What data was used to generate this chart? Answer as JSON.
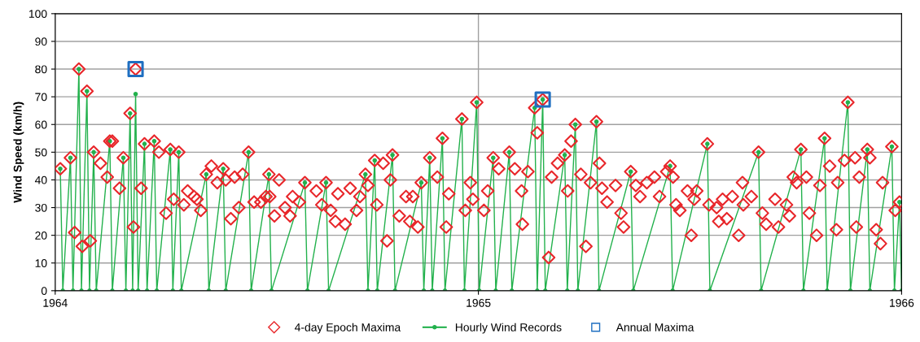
{
  "chart_data": {
    "type": "scatter",
    "ylabel": "Wind Speed (km/h)",
    "xlim": [
      1964,
      1966
    ],
    "xticks": [
      1964,
      1965,
      1966
    ],
    "ylim": [
      0,
      100
    ],
    "yticks": [
      0,
      10,
      20,
      30,
      40,
      50,
      60,
      70,
      80,
      90,
      100
    ],
    "grid": true,
    "legend": "bottom",
    "series": [
      {
        "name": "4-day Epoch Maxima",
        "marker": "diamond",
        "color": "#e8262a",
        "x": [
          1964.012,
          1964.036,
          1964.056,
          1964.075,
          1964.046,
          1964.064,
          1964.083,
          1964.091,
          1964.107,
          1964.123,
          1964.129,
          1964.135,
          1964.152,
          1964.161,
          1964.177,
          1964.185,
          1964.19,
          1964.203,
          1964.211,
          1964.234,
          1964.245,
          1964.262,
          1964.272,
          1964.28,
          1964.292,
          1964.304,
          1964.313,
          1964.328,
          1964.335,
          1964.344,
          1964.357,
          1964.369,
          1964.383,
          1964.397,
          1964.403,
          1964.415,
          1964.424,
          1964.434,
          1964.443,
          1964.457,
          1964.47,
          1964.486,
          1964.498,
          1964.505,
          1964.507,
          1964.518,
          1964.529,
          1964.543,
          1964.555,
          1964.561,
          1964.577,
          1964.59,
          1964.617,
          1964.63,
          1964.64,
          1964.651,
          1964.662,
          1964.668,
          1964.685,
          1964.697,
          1964.712,
          1964.72,
          1964.733,
          1964.739,
          1964.755,
          1964.76,
          1964.775,
          1964.784,
          1964.792,
          1964.797,
          1964.813,
          1964.829,
          1964.838,
          1964.845,
          1964.857,
          1964.865,
          1964.885,
          1964.903,
          1964.915,
          1964.924,
          1964.93,
          1964.961,
          1964.969,
          1964.981,
          1964.987,
          1964.996,
          1965.013,
          1965.022,
          1965.035,
          1965.048,
          1965.073,
          1965.086,
          1965.102,
          1965.104,
          1965.117,
          1965.133,
          1965.139,
          1965.152,
          1965.166,
          1965.173,
          1965.187,
          1965.204,
          1965.211,
          1965.219,
          1965.229,
          1965.242,
          1965.254,
          1965.265,
          1965.279,
          1965.286,
          1965.292,
          1965.304,
          1965.324,
          1965.337,
          1965.343,
          1965.36,
          1965.372,
          1965.382,
          1965.398,
          1965.416,
          1965.428,
          1965.445,
          1965.453,
          1965.46,
          1965.467,
          1965.476,
          1965.494,
          1965.503,
          1965.51,
          1965.516,
          1965.541,
          1965.545,
          1965.563,
          1965.568,
          1965.577,
          1965.587,
          1965.6,
          1965.615,
          1965.624,
          1965.626,
          1965.645,
          1965.662,
          1965.671,
          1965.68,
          1965.701,
          1965.709,
          1965.728,
          1965.735,
          1965.744,
          1965.752,
          1965.762,
          1965.775,
          1965.782,
          1965.799,
          1965.807,
          1965.818,
          1965.83,
          1965.846,
          1965.849,
          1965.865,
          1965.873,
          1965.89,
          1965.893,
          1965.9,
          1965.919,
          1965.925,
          1965.94,
          1965.95,
          1965.955,
          1965.977,
          1965.985,
          1965.995
        ],
        "values": [
          44,
          48,
          80,
          72,
          21,
          16,
          18,
          50,
          46,
          41,
          54,
          54,
          37,
          48,
          64,
          23,
          80,
          37,
          53,
          54,
          50,
          28,
          51,
          33,
          50,
          31,
          36,
          34,
          33,
          29,
          42,
          45,
          39,
          44,
          40,
          26,
          41,
          30,
          42,
          50,
          32,
          32,
          34,
          42,
          34,
          27,
          40,
          30,
          27,
          34,
          32,
          39,
          36,
          31,
          39,
          29,
          25,
          35,
          24,
          37,
          29,
          34,
          42,
          38,
          47,
          31,
          46,
          18,
          40,
          49,
          27,
          34,
          25,
          34,
          23,
          39,
          48,
          41,
          55,
          23,
          35,
          62,
          29,
          39,
          33,
          68,
          29,
          36,
          48,
          44,
          50,
          44,
          36,
          24,
          43,
          66,
          57,
          69,
          12,
          41,
          46,
          49,
          36,
          54,
          60,
          42,
          16,
          39,
          61,
          46,
          37,
          32,
          38,
          28,
          23,
          43,
          38,
          34,
          39,
          41,
          34,
          43,
          45,
          41,
          31,
          29,
          36,
          20,
          33,
          36,
          53,
          31,
          30,
          25,
          33,
          26,
          34,
          20,
          39,
          31,
          34,
          50,
          28,
          24,
          33,
          23,
          31,
          27,
          41,
          39,
          51,
          41,
          28,
          20,
          38,
          55,
          45,
          22,
          39,
          47,
          68,
          48,
          23,
          41,
          51,
          48,
          22,
          17,
          39,
          52,
          29,
          32
        ]
      },
      {
        "name": "Hourly Wind Records",
        "type": "line",
        "marker": "circle",
        "color": "#22b14c",
        "x": [
          1964.012,
          1964.018,
          1964.036,
          1964.042,
          1964.056,
          1964.062,
          1964.075,
          1964.081,
          1964.091,
          1964.097,
          1964.129,
          1964.135,
          1964.161,
          1964.167,
          1964.177,
          1964.183,
          1964.19,
          1964.196,
          1964.211,
          1964.217,
          1964.234,
          1964.24,
          1964.272,
          1964.278,
          1964.292,
          1964.298,
          1964.357,
          1964.363,
          1964.397,
          1964.403,
          1964.457,
          1964.463,
          1964.505,
          1964.511,
          1964.59,
          1964.596,
          1964.64,
          1964.646,
          1964.733,
          1964.739,
          1964.755,
          1964.761,
          1964.797,
          1964.803,
          1964.865,
          1964.871,
          1964.885,
          1964.891,
          1964.915,
          1964.921,
          1964.961,
          1964.967,
          1964.996,
          1965.002,
          1965.035,
          1965.041,
          1965.073,
          1965.079,
          1965.133,
          1965.139,
          1965.152,
          1965.158,
          1965.204,
          1965.21,
          1965.229,
          1965.235,
          1965.279,
          1965.285,
          1965.36,
          1965.366,
          1965.453,
          1965.459,
          1965.541,
          1965.547,
          1965.662,
          1965.668,
          1965.762,
          1965.768,
          1965.818,
          1965.824,
          1965.873,
          1965.879,
          1965.919,
          1965.925,
          1965.977,
          1965.983,
          1965.995,
          1966.0
        ],
        "values": [
          44,
          0,
          48,
          0,
          80,
          0,
          72,
          0,
          50,
          0,
          54,
          0,
          48,
          0,
          64,
          0,
          71,
          0,
          53,
          0,
          54,
          0,
          51,
          0,
          50,
          0,
          42,
          0,
          44,
          0,
          50,
          0,
          42,
          0,
          39,
          0,
          39,
          0,
          42,
          0,
          47,
          0,
          49,
          0,
          39,
          0,
          48,
          0,
          55,
          0,
          62,
          0,
          68,
          0,
          48,
          0,
          50,
          0,
          66,
          0,
          69,
          0,
          49,
          0,
          60,
          0,
          61,
          0,
          43,
          0,
          45,
          0,
          53,
          0,
          50,
          0,
          51,
          0,
          55,
          0,
          68,
          0,
          51,
          0,
          52,
          0,
          32,
          0
        ]
      },
      {
        "name": "Annual Maxima",
        "type": "scatter",
        "marker": "square",
        "color": "#1f6fc1",
        "x": [
          1964.19,
          1965.152
        ],
        "values": [
          80,
          69
        ]
      }
    ]
  }
}
